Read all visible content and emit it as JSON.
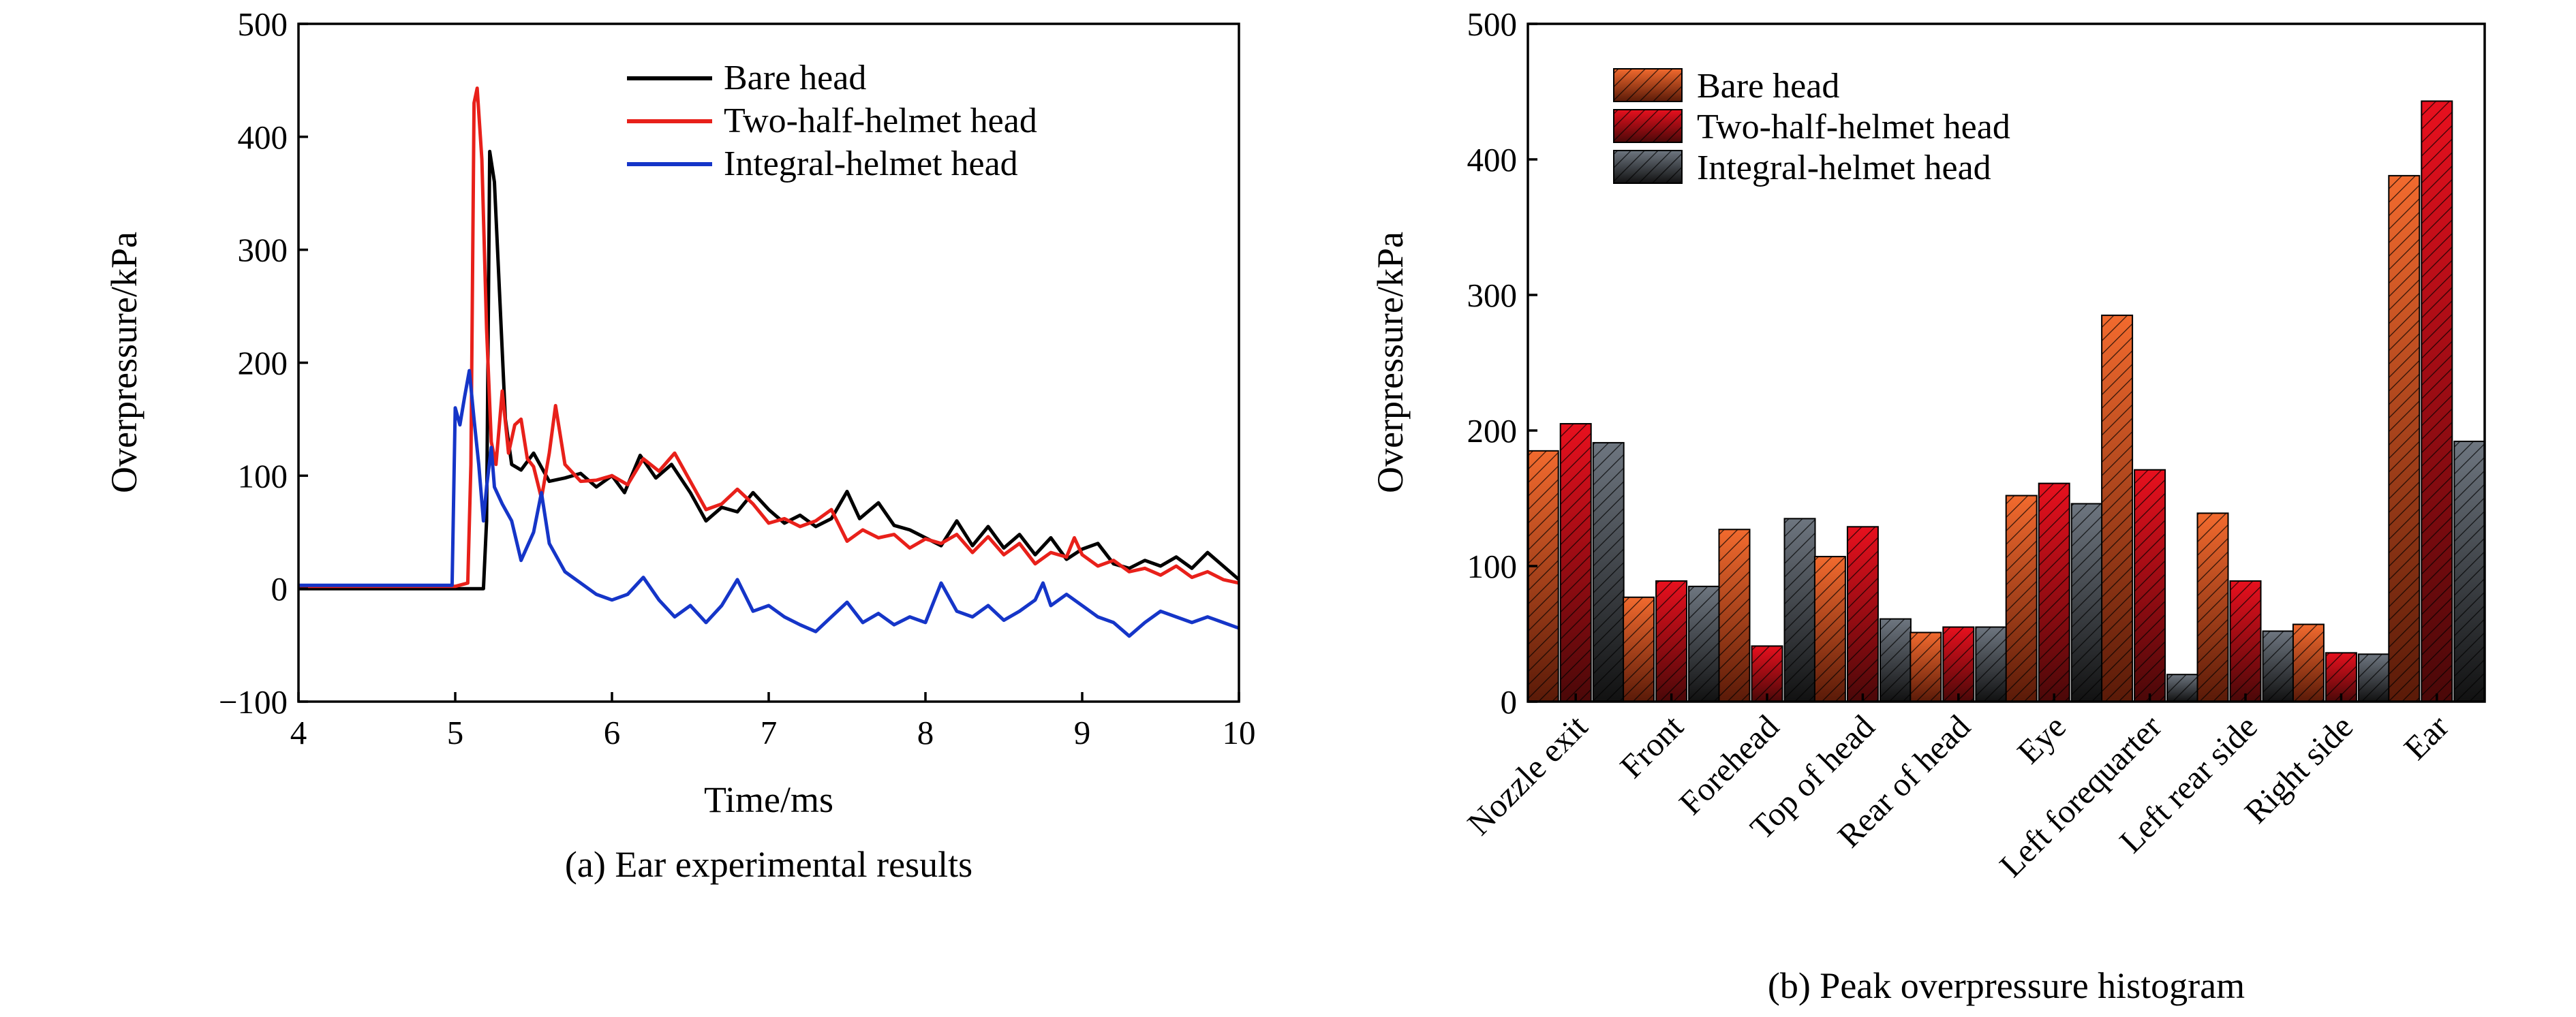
{
  "chart_data": [
    {
      "type": "line",
      "xlabel": "Time/ms",
      "ylabel": "Overpressure/kPa",
      "xlim": [
        4,
        10
      ],
      "ylim": [
        -100,
        500
      ],
      "xticks": [
        "4",
        "5",
        "6",
        "7",
        "8",
        "9",
        "10"
      ],
      "yticks": [
        "−100",
        "0",
        "100",
        "200",
        "300",
        "400",
        "500"
      ],
      "grid": false,
      "legend_position": "top-right",
      "caption": "(a) Ear experimental results",
      "series": [
        {
          "name": "Bare head",
          "color": "#000000",
          "points": [
            [
              4.0,
              0
            ],
            [
              4.5,
              0
            ],
            [
              5.0,
              0
            ],
            [
              5.18,
              0
            ],
            [
              5.2,
              60
            ],
            [
              5.22,
              387
            ],
            [
              5.25,
              360
            ],
            [
              5.28,
              270
            ],
            [
              5.32,
              150
            ],
            [
              5.36,
              110
            ],
            [
              5.42,
              105
            ],
            [
              5.5,
              120
            ],
            [
              5.6,
              95
            ],
            [
              5.7,
              98
            ],
            [
              5.8,
              102
            ],
            [
              5.9,
              90
            ],
            [
              6.0,
              100
            ],
            [
              6.08,
              85
            ],
            [
              6.18,
              118
            ],
            [
              6.28,
              98
            ],
            [
              6.38,
              110
            ],
            [
              6.5,
              85
            ],
            [
              6.6,
              60
            ],
            [
              6.7,
              72
            ],
            [
              6.8,
              68
            ],
            [
              6.9,
              85
            ],
            [
              7.0,
              70
            ],
            [
              7.1,
              58
            ],
            [
              7.2,
              65
            ],
            [
              7.3,
              55
            ],
            [
              7.4,
              62
            ],
            [
              7.5,
              86
            ],
            [
              7.58,
              62
            ],
            [
              7.7,
              76
            ],
            [
              7.8,
              56
            ],
            [
              7.9,
              52
            ],
            [
              8.0,
              45
            ],
            [
              8.1,
              38
            ],
            [
              8.2,
              60
            ],
            [
              8.3,
              38
            ],
            [
              8.4,
              55
            ],
            [
              8.5,
              36
            ],
            [
              8.6,
              48
            ],
            [
              8.7,
              30
            ],
            [
              8.8,
              45
            ],
            [
              8.9,
              26
            ],
            [
              9.0,
              35
            ],
            [
              9.1,
              40
            ],
            [
              9.2,
              22
            ],
            [
              9.3,
              18
            ],
            [
              9.4,
              25
            ],
            [
              9.5,
              20
            ],
            [
              9.6,
              28
            ],
            [
              9.7,
              18
            ],
            [
              9.8,
              32
            ],
            [
              9.9,
              20
            ],
            [
              10.0,
              8
            ]
          ]
        },
        {
          "name": "Two-half-helmet head",
          "color": "#e8201a",
          "points": [
            [
              4.0,
              2
            ],
            [
              4.5,
              2
            ],
            [
              5.0,
              2
            ],
            [
              5.08,
              5
            ],
            [
              5.1,
              110
            ],
            [
              5.12,
              430
            ],
            [
              5.14,
              443
            ],
            [
              5.17,
              380
            ],
            [
              5.2,
              230
            ],
            [
              5.23,
              130
            ],
            [
              5.26,
              110
            ],
            [
              5.3,
              175
            ],
            [
              5.34,
              120
            ],
            [
              5.38,
              145
            ],
            [
              5.42,
              150
            ],
            [
              5.46,
              115
            ],
            [
              5.5,
              108
            ],
            [
              5.55,
              80
            ],
            [
              5.6,
              120
            ],
            [
              5.64,
              162
            ],
            [
              5.7,
              110
            ],
            [
              5.8,
              95
            ],
            [
              5.9,
              96
            ],
            [
              6.0,
              100
            ],
            [
              6.1,
              92
            ],
            [
              6.2,
              115
            ],
            [
              6.3,
              104
            ],
            [
              6.4,
              120
            ],
            [
              6.5,
              95
            ],
            [
              6.6,
              70
            ],
            [
              6.7,
              75
            ],
            [
              6.8,
              88
            ],
            [
              6.9,
              75
            ],
            [
              7.0,
              58
            ],
            [
              7.1,
              62
            ],
            [
              7.2,
              55
            ],
            [
              7.3,
              60
            ],
            [
              7.4,
              70
            ],
            [
              7.5,
              42
            ],
            [
              7.6,
              52
            ],
            [
              7.7,
              45
            ],
            [
              7.8,
              48
            ],
            [
              7.9,
              36
            ],
            [
              8.0,
              44
            ],
            [
              8.1,
              40
            ],
            [
              8.2,
              48
            ],
            [
              8.3,
              32
            ],
            [
              8.4,
              46
            ],
            [
              8.5,
              30
            ],
            [
              8.6,
              40
            ],
            [
              8.7,
              22
            ],
            [
              8.8,
              32
            ],
            [
              8.9,
              28
            ],
            [
              8.95,
              45
            ],
            [
              9.0,
              30
            ],
            [
              9.1,
              20
            ],
            [
              9.2,
              25
            ],
            [
              9.3,
              15
            ],
            [
              9.4,
              18
            ],
            [
              9.5,
              12
            ],
            [
              9.6,
              20
            ],
            [
              9.7,
              10
            ],
            [
              9.8,
              15
            ],
            [
              9.9,
              8
            ],
            [
              10.0,
              5
            ]
          ]
        },
        {
          "name": "Integral-helmet head",
          "color": "#1535c8",
          "points": [
            [
              4.0,
              3
            ],
            [
              4.5,
              3
            ],
            [
              4.98,
              3
            ],
            [
              5.0,
              160
            ],
            [
              5.03,
              145
            ],
            [
              5.06,
              170
            ],
            [
              5.09,
              193
            ],
            [
              5.12,
              150
            ],
            [
              5.15,
              110
            ],
            [
              5.18,
              60
            ],
            [
              5.2,
              90
            ],
            [
              5.23,
              125
            ],
            [
              5.25,
              90
            ],
            [
              5.3,
              75
            ],
            [
              5.36,
              60
            ],
            [
              5.42,
              25
            ],
            [
              5.5,
              50
            ],
            [
              5.55,
              85
            ],
            [
              5.6,
              40
            ],
            [
              5.7,
              15
            ],
            [
              5.8,
              5
            ],
            [
              5.9,
              -5
            ],
            [
              6.0,
              -10
            ],
            [
              6.1,
              -5
            ],
            [
              6.2,
              10
            ],
            [
              6.3,
              -10
            ],
            [
              6.4,
              -25
            ],
            [
              6.5,
              -15
            ],
            [
              6.6,
              -30
            ],
            [
              6.7,
              -15
            ],
            [
              6.8,
              8
            ],
            [
              6.9,
              -20
            ],
            [
              7.0,
              -15
            ],
            [
              7.1,
              -25
            ],
            [
              7.2,
              -32
            ],
            [
              7.3,
              -38
            ],
            [
              7.4,
              -25
            ],
            [
              7.5,
              -12
            ],
            [
              7.6,
              -30
            ],
            [
              7.7,
              -22
            ],
            [
              7.8,
              -32
            ],
            [
              7.9,
              -25
            ],
            [
              8.0,
              -30
            ],
            [
              8.1,
              5
            ],
            [
              8.2,
              -20
            ],
            [
              8.3,
              -25
            ],
            [
              8.4,
              -15
            ],
            [
              8.5,
              -28
            ],
            [
              8.6,
              -20
            ],
            [
              8.7,
              -10
            ],
            [
              8.75,
              5
            ],
            [
              8.8,
              -15
            ],
            [
              8.9,
              -5
            ],
            [
              9.0,
              -15
            ],
            [
              9.1,
              -25
            ],
            [
              9.2,
              -30
            ],
            [
              9.3,
              -42
            ],
            [
              9.4,
              -30
            ],
            [
              9.5,
              -20
            ],
            [
              9.6,
              -25
            ],
            [
              9.7,
              -30
            ],
            [
              9.8,
              -25
            ],
            [
              9.9,
              -30
            ],
            [
              10.0,
              -35
            ]
          ]
        }
      ]
    },
    {
      "type": "bar",
      "ylabel": "Overpressure/kPa",
      "ylim": [
        0,
        500
      ],
      "yticks": [
        "0",
        "100",
        "200",
        "300",
        "400",
        "500"
      ],
      "grid": false,
      "legend_position": "top-left",
      "caption": "(b) Peak overpressure histogram",
      "categories": [
        "Nozzle exit",
        "Front",
        "Forehead",
        "Top of head",
        "Rear of head",
        "Eye",
        "Left forequarter",
        "Left rear side",
        "Right side",
        "Ear"
      ],
      "series": [
        {
          "name": "Bare head",
          "color_top": "#f26a2e",
          "color_bottom": "#5a1a08",
          "values": [
            185,
            77,
            127,
            107,
            51,
            152,
            285,
            139,
            57,
            388
          ]
        },
        {
          "name": "Two-half-helmet head",
          "color_top": "#e8101e",
          "color_bottom": "#4a0808",
          "values": [
            205,
            89,
            41,
            129,
            55,
            161,
            171,
            89,
            36,
            443
          ]
        },
        {
          "name": "Integral-helmet head",
          "color_top": "#6e7680",
          "color_bottom": "#111111",
          "values": [
            191,
            85,
            135,
            61,
            55,
            146,
            20,
            52,
            35,
            192
          ]
        }
      ]
    }
  ]
}
